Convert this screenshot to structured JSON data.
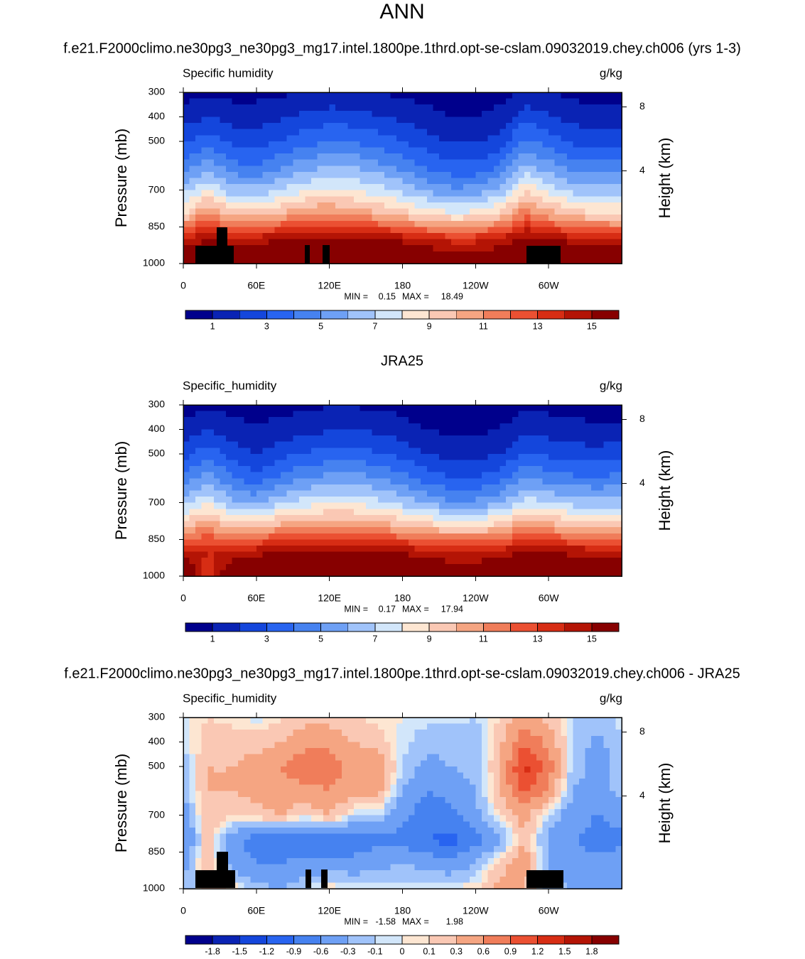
{
  "chart_data": [
    {
      "type": "contour",
      "title": "ANN",
      "subtitle": "f.e21.F2000climo.ne30pg3_ne30pg3_mg17.intel.1800pe.1thrd.opt-se-cslam.09032019.chey.ch006 (yrs 1-3)",
      "left_label": "Specific humidity",
      "right_label": "g/kg",
      "ylabel": "Pressure (mb)",
      "y2label": "Height (km)",
      "xlim": [
        0,
        360
      ],
      "xticks": [
        0,
        {
          "value": 60,
          "label": "60E"
        },
        {
          "value": 120,
          "label": "120E"
        },
        {
          "value": 180,
          "label": "180"
        },
        {
          "value": 240,
          "label": "120W"
        },
        {
          "value": 300,
          "label": "60W"
        }
      ],
      "ylim": [
        1000,
        300
      ],
      "yticks": [
        300,
        400,
        500,
        700,
        850,
        1000
      ],
      "y2lim": [
        -1.8,
        8.9
      ],
      "y2ticks": [
        4,
        8
      ],
      "lon": [
        0,
        20,
        40,
        60,
        80,
        100,
        120,
        140,
        160,
        180,
        200,
        220,
        240,
        260,
        280,
        300,
        320,
        340,
        360
      ],
      "pressure": [
        300,
        400,
        500,
        600,
        700,
        800,
        900,
        1000
      ],
      "values": [
        [
          0.6,
          0.7,
          0.6,
          0.7,
          0.8,
          1.0,
          1.2,
          1.2,
          1.0,
          0.8,
          0.6,
          0.5,
          0.5,
          0.6,
          1.3,
          1.0,
          0.7,
          0.6,
          0.6
        ],
        [
          1.5,
          2.0,
          1.6,
          1.5,
          1.8,
          2.2,
          2.5,
          2.4,
          2.1,
          1.7,
          1.3,
          1.0,
          1.0,
          1.3,
          2.6,
          2.2,
          1.6,
          1.4,
          1.5
        ],
        [
          2.8,
          3.5,
          2.7,
          2.5,
          3.0,
          3.6,
          4.0,
          3.9,
          3.5,
          3.0,
          2.4,
          1.9,
          1.9,
          2.5,
          4.2,
          3.6,
          2.8,
          2.6,
          2.8
        ],
        [
          4.5,
          5.5,
          4.3,
          4.0,
          4.8,
          5.5,
          6.0,
          5.8,
          5.3,
          4.6,
          3.8,
          3.2,
          3.2,
          4.0,
          6.2,
          5.4,
          4.5,
          4.2,
          4.5
        ],
        [
          6.5,
          8.0,
          6.3,
          6.3,
          7.0,
          7.8,
          8.2,
          8.0,
          7.4,
          6.7,
          5.8,
          5.2,
          5.3,
          6.2,
          8.8,
          7.5,
          6.6,
          6.3,
          6.5
        ],
        [
          9.0,
          11.5,
          9.5,
          9.8,
          10.2,
          11.0,
          11.3,
          10.8,
          10.2,
          9.5,
          8.8,
          8.3,
          8.4,
          9.4,
          11.8,
          10.5,
          9.6,
          9.2,
          9.0
        ],
        [
          14.0,
          15.0,
          14.5,
          14.5,
          14.8,
          15.5,
          15.5,
          15.3,
          15.0,
          14.6,
          14.0,
          13.6,
          13.6,
          14.0,
          15.5,
          15.0,
          14.5,
          14.2,
          14.0
        ],
        [
          17.0,
          17.5,
          17.0,
          17.0,
          17.5,
          18.0,
          18.2,
          18.0,
          17.8,
          17.5,
          17.0,
          16.5,
          16.5,
          17.0,
          17.8,
          17.5,
          17.2,
          17.0,
          17.0
        ]
      ],
      "min_label": "MIN =",
      "min": 0.15,
      "max_label": "MAX =",
      "max": 18.49,
      "levels": [
        1,
        2,
        3,
        4,
        5,
        6,
        7,
        8,
        9,
        10,
        11,
        12,
        13,
        14,
        15
      ],
      "colorbar_ticks": [
        1,
        3,
        5,
        7,
        9,
        11,
        13,
        15
      ],
      "colors": [
        "#00008c",
        "#0a23b4",
        "#1446dc",
        "#2864f0",
        "#4682f0",
        "#6ea0f5",
        "#a0c3fa",
        "#d2e6fa",
        "#fde6d2",
        "#fac8b4",
        "#f5a582",
        "#f07d5a",
        "#eb5032",
        "#d72d14",
        "#b41405",
        "#870000"
      ]
    },
    {
      "type": "contour",
      "subtitle": "JRA25",
      "left_label": "Specific_humidity",
      "right_label": "g/kg",
      "ylabel": "Pressure (mb)",
      "y2label": "Height (km)",
      "xlim": [
        0,
        360
      ],
      "xticks": [
        0,
        {
          "value": 60,
          "label": "60E"
        },
        {
          "value": 120,
          "label": "120E"
        },
        {
          "value": 180,
          "label": "180"
        },
        {
          "value": 240,
          "label": "120W"
        },
        {
          "value": 300,
          "label": "60W"
        }
      ],
      "ylim": [
        1000,
        300
      ],
      "yticks": [
        300,
        400,
        500,
        700,
        850,
        1000
      ],
      "y2lim": [
        -1.8,
        8.9
      ],
      "y2ticks": [
        4,
        8
      ],
      "lon": [
        0,
        20,
        40,
        60,
        80,
        100,
        120,
        140,
        160,
        180,
        200,
        220,
        240,
        260,
        280,
        300,
        320,
        340,
        360
      ],
      "pressure": [
        300,
        400,
        500,
        600,
        700,
        800,
        900,
        1000
      ],
      "values": [
        [
          0.5,
          0.8,
          0.6,
          0.5,
          0.6,
          0.8,
          0.9,
          0.9,
          0.8,
          0.6,
          0.5,
          0.4,
          0.4,
          0.5,
          0.8,
          0.7,
          0.6,
          0.5,
          0.5
        ],
        [
          1.3,
          1.9,
          1.4,
          1.1,
          1.4,
          1.7,
          1.9,
          2.0,
          1.8,
          1.4,
          1.0,
          0.8,
          0.8,
          1.0,
          1.6,
          1.5,
          1.3,
          1.2,
          1.3
        ],
        [
          2.6,
          3.6,
          2.6,
          2.0,
          2.6,
          3.1,
          3.3,
          3.4,
          3.1,
          2.6,
          2.0,
          1.6,
          1.6,
          2.0,
          3.0,
          2.8,
          2.5,
          2.4,
          2.6
        ],
        [
          4.3,
          5.5,
          4.2,
          3.4,
          4.3,
          5.0,
          5.4,
          5.5,
          5.0,
          4.4,
          3.5,
          3.0,
          3.0,
          3.6,
          5.0,
          4.6,
          4.2,
          4.1,
          4.3
        ],
        [
          6.5,
          7.8,
          6.2,
          5.8,
          6.8,
          7.5,
          7.8,
          7.8,
          7.3,
          6.6,
          5.8,
          5.2,
          5.2,
          5.9,
          7.5,
          7.0,
          6.5,
          6.4,
          6.5
        ],
        [
          10.0,
          11.0,
          9.8,
          10.0,
          10.5,
          11.0,
          11.2,
          11.0,
          10.7,
          10.2,
          9.6,
          9.2,
          9.2,
          9.6,
          11.0,
          10.6,
          10.2,
          10.0,
          10.0
        ],
        [
          14.5,
          14.0,
          14.0,
          14.5,
          15.0,
          15.3,
          15.5,
          15.4,
          15.2,
          14.8,
          14.3,
          14.0,
          14.0,
          14.3,
          15.0,
          14.8,
          14.6,
          14.5,
          14.5
        ],
        [
          17.5,
          13.0,
          17.0,
          17.5,
          17.8,
          18.0,
          18.0,
          18.0,
          17.8,
          17.5,
          17.0,
          16.5,
          16.5,
          17.0,
          17.5,
          17.5,
          17.5,
          17.5,
          17.5
        ]
      ],
      "min_label": "MIN =",
      "min": 0.17,
      "max_label": "MAX =",
      "max": 17.94,
      "levels": [
        1,
        2,
        3,
        4,
        5,
        6,
        7,
        8,
        9,
        10,
        11,
        12,
        13,
        14,
        15
      ],
      "colorbar_ticks": [
        1,
        3,
        5,
        7,
        9,
        11,
        13,
        15
      ],
      "colors": [
        "#00008c",
        "#0a23b4",
        "#1446dc",
        "#2864f0",
        "#4682f0",
        "#6ea0f5",
        "#a0c3fa",
        "#d2e6fa",
        "#fde6d2",
        "#fac8b4",
        "#f5a582",
        "#f07d5a",
        "#eb5032",
        "#d72d14",
        "#b41405",
        "#870000"
      ]
    },
    {
      "type": "contour",
      "subtitle": "f.e21.F2000climo.ne30pg3_ne30pg3_mg17.intel.1800pe.1thrd.opt-se-cslam.09032019.chey.ch006 - JRA25",
      "left_label": "Specific_humidity",
      "right_label": "g/kg",
      "ylabel": "Pressure (mb)",
      "y2label": "Height (km)",
      "xlim": [
        0,
        360
      ],
      "xticks": [
        0,
        {
          "value": 60,
          "label": "60E"
        },
        {
          "value": 120,
          "label": "120E"
        },
        {
          "value": 180,
          "label": "180"
        },
        {
          "value": 240,
          "label": "120W"
        },
        {
          "value": 300,
          "label": "60W"
        }
      ],
      "ylim": [
        1000,
        300
      ],
      "yticks": [
        300,
        400,
        500,
        700,
        850,
        1000
      ],
      "y2lim": [
        -1.8,
        8.9
      ],
      "y2ticks": [
        4,
        8
      ],
      "lon": [
        0,
        20,
        40,
        60,
        80,
        100,
        120,
        140,
        160,
        180,
        200,
        220,
        240,
        260,
        280,
        300,
        320,
        340,
        360
      ],
      "pressure": [
        300,
        400,
        500,
        600,
        700,
        800,
        900,
        1000
      ],
      "values": [
        [
          -0.05,
          0.1,
          0.05,
          -0.05,
          0.05,
          0.2,
          0.2,
          0.1,
          0.05,
          0.0,
          -0.05,
          -0.05,
          -0.1,
          0.1,
          0.4,
          0.2,
          -0.1,
          -0.2,
          -0.05
        ],
        [
          -0.1,
          0.2,
          0.2,
          0.2,
          0.3,
          0.5,
          0.5,
          0.3,
          0.2,
          -0.05,
          -0.2,
          -0.2,
          -0.2,
          0.2,
          0.9,
          0.5,
          -0.1,
          -0.4,
          -0.1
        ],
        [
          -0.2,
          0.3,
          0.3,
          0.4,
          0.6,
          0.8,
          0.8,
          0.5,
          0.5,
          -0.1,
          -0.4,
          -0.3,
          -0.2,
          0.3,
          1.3,
          0.8,
          -0.2,
          -0.4,
          -0.2
        ],
        [
          -0.2,
          0.3,
          0.3,
          0.4,
          0.5,
          0.5,
          0.6,
          0.4,
          0.4,
          -0.3,
          -0.6,
          -0.5,
          -0.3,
          0.3,
          1.0,
          0.5,
          -0.3,
          -0.4,
          -0.2
        ],
        [
          -0.5,
          0.3,
          0.1,
          0.2,
          0.3,
          0.1,
          0.3,
          -0.1,
          -0.1,
          -0.5,
          -0.8,
          -0.7,
          -0.4,
          0.1,
          0.4,
          -0.1,
          -0.5,
          -0.6,
          -0.5
        ],
        [
          -0.7,
          0.2,
          -0.5,
          -0.8,
          -0.8,
          -0.9,
          -0.8,
          -0.8,
          -0.7,
          -0.7,
          -0.9,
          -1.0,
          -0.7,
          -0.4,
          0.3,
          -0.4,
          -0.6,
          -0.7,
          -0.7
        ],
        [
          -0.4,
          0.3,
          -0.4,
          -0.6,
          -0.6,
          -0.5,
          -0.5,
          -0.5,
          -0.4,
          -0.3,
          -0.4,
          -0.5,
          -0.3,
          0.2,
          0.5,
          -0.3,
          -0.5,
          -0.5,
          -0.4
        ],
        [
          -0.3,
          0.2,
          0.1,
          -0.2,
          -0.3,
          -0.1,
          0.1,
          0.0,
          0.0,
          0.0,
          0.0,
          0.0,
          0.1,
          0.4,
          0.3,
          -0.2,
          -0.3,
          -0.3,
          -0.3
        ]
      ],
      "min_label": "MIN =",
      "min": -1.58,
      "max_label": "MAX =",
      "max": 1.98,
      "levels": [
        -1.8,
        -1.5,
        -1.2,
        -0.9,
        -0.6,
        -0.3,
        -0.1,
        0,
        0.1,
        0.3,
        0.6,
        0.9,
        1.2,
        1.5,
        1.8
      ],
      "colorbar_ticks": [
        -1.8,
        -1.5,
        -1.2,
        -0.9,
        -0.6,
        -0.3,
        -0.1,
        0,
        0.1,
        0.3,
        0.6,
        0.9,
        1.2,
        1.5,
        1.8
      ],
      "colors": [
        "#00008c",
        "#0a23b4",
        "#1446dc",
        "#2864f0",
        "#4682f0",
        "#6ea0f5",
        "#a0c3fa",
        "#d2e6fa",
        "#fde6d2",
        "#fac8b4",
        "#f5a582",
        "#f07d5a",
        "#eb5032",
        "#d72d14",
        "#b41405",
        "#870000"
      ]
    }
  ]
}
